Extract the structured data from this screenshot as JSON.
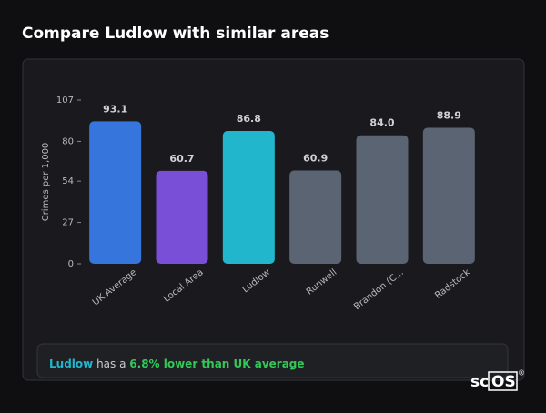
{
  "title": "Compare Ludlow with similar areas",
  "chart_data": {
    "type": "bar",
    "categories": [
      "UK Average",
      "Local Area",
      "Ludlow",
      "Runwell",
      "Brandon (C...",
      "Radstock"
    ],
    "values": [
      93.1,
      60.7,
      86.8,
      60.9,
      84.0,
      88.9
    ],
    "value_labels": [
      "93.1",
      "60.7",
      "86.8",
      "60.9",
      "84.0",
      "88.9"
    ],
    "colors": [
      "#3575dc",
      "#7a4fd8",
      "#22b6cc",
      "#5b6472",
      "#5b6472",
      "#5b6472"
    ],
    "ylabel": "Crimes per 1,000",
    "ylim": [
      0,
      107
    ],
    "yticks": [
      0,
      27,
      54,
      80,
      107
    ]
  },
  "summary": {
    "place": "Ludlow",
    "text": "has a",
    "highlight": "6.8% lower than UK average"
  },
  "logo": {
    "left": "sc",
    "right": "OS",
    "mark": "®"
  }
}
